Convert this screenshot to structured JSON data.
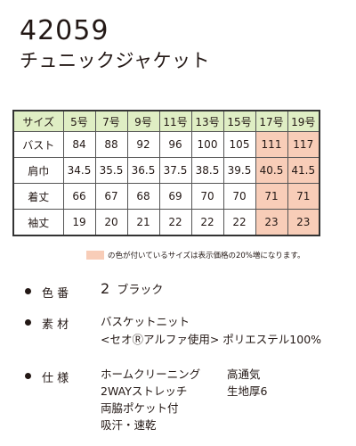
{
  "product": {
    "code": "42059",
    "name": "チュニックジャケット"
  },
  "size_table": {
    "corner": "サイズ",
    "sizes": [
      "5号",
      "7号",
      "9号",
      "11号",
      "13号",
      "15号",
      "17号",
      "19号"
    ],
    "rows": [
      {
        "label": "バスト",
        "values": [
          "84",
          "88",
          "92",
          "96",
          "100",
          "105",
          "111",
          "117"
        ]
      },
      {
        "label": "肩巾",
        "values": [
          "34.5",
          "35.5",
          "36.5",
          "37.5",
          "38.5",
          "39.5",
          "40.5",
          "41.5"
        ]
      },
      {
        "label": "着丈",
        "values": [
          "66",
          "67",
          "68",
          "69",
          "70",
          "70",
          "71",
          "71"
        ]
      },
      {
        "label": "袖丈",
        "values": [
          "19",
          "20",
          "21",
          "22",
          "22",
          "22",
          "23",
          "23"
        ]
      }
    ],
    "highlight_color": "#f8cdb8",
    "header_color": "#dfeec4"
  },
  "note": "の色が付いているサイズは表示価格の20%増になります。",
  "specs": {
    "color": {
      "label": "色 番",
      "number": "2",
      "name": "ブラック"
    },
    "material": {
      "label": "素 材",
      "line1": "バスケットニット",
      "line2": "<セオⓇアルファ使用> ポリエステル100%"
    },
    "features": {
      "label": "仕 様",
      "items": [
        "ホームクリーニング",
        "高通気",
        "2WAYストレッチ",
        "生地厚6",
        "両脇ポケット付",
        "",
        "吸汗・速乾",
        ""
      ]
    }
  }
}
